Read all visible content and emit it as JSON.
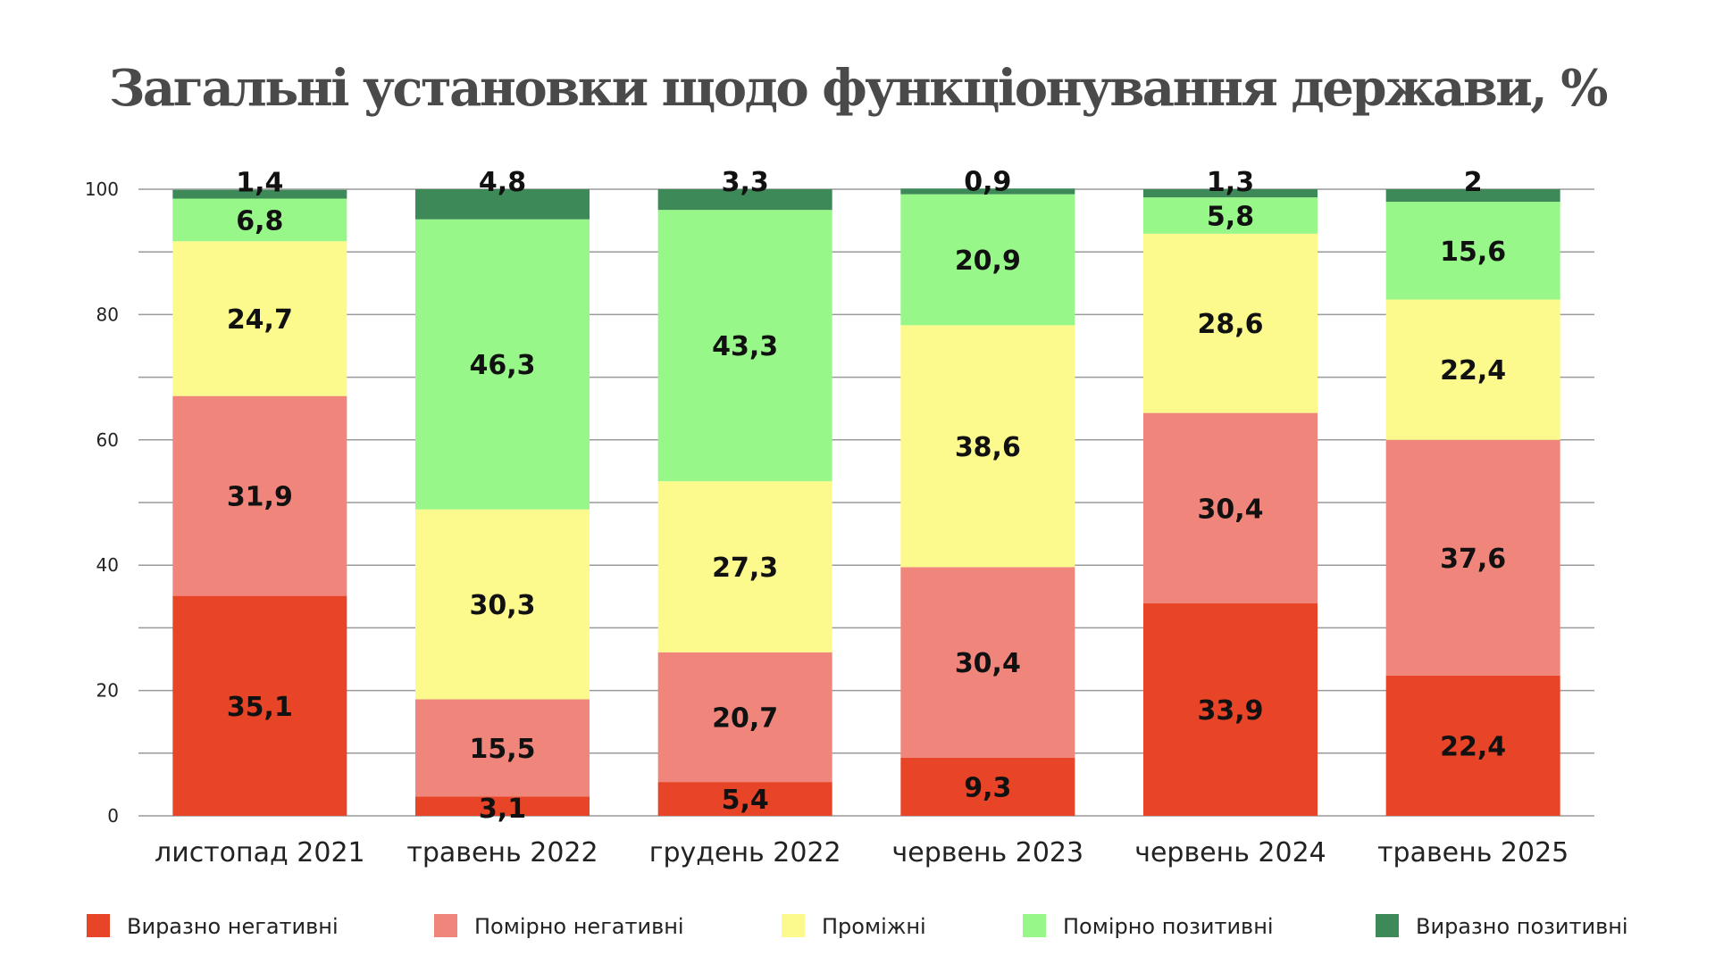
{
  "chart_data": {
    "type": "bar",
    "stacked": true,
    "title": "Загальні установки щодо функціонування держави, %",
    "categories": [
      "листопад 2021",
      "травень 2022",
      "грудень 2022",
      "червень 2023",
      "червень 2024",
      "травень 2025"
    ],
    "ylim": [
      0,
      100
    ],
    "yticks": [
      0,
      20,
      40,
      60,
      80,
      100
    ],
    "yticks_labels": [
      "0",
      "20",
      "40",
      "60",
      "80",
      "100"
    ],
    "grid": true,
    "legend_position": "bottom",
    "series": [
      {
        "name": "Виразно негативні",
        "color": "#e84427",
        "values": [
          35.1,
          3.1,
          5.4,
          9.3,
          33.9,
          22.4
        ],
        "labels": [
          "35,1",
          "3,1",
          "5,4",
          "9,3",
          "33,9",
          "22,4"
        ]
      },
      {
        "name": "Помірно негативні",
        "color": "#f0867b",
        "values": [
          31.9,
          15.5,
          20.7,
          30.4,
          30.4,
          37.6
        ],
        "labels": [
          "31,9",
          "15,5",
          "20,7",
          "30,4",
          "30,4",
          "37,6"
        ]
      },
      {
        "name": "Проміжні",
        "color": "#fcfa8c",
        "values": [
          24.7,
          30.3,
          27.3,
          38.6,
          28.6,
          22.4
        ],
        "labels": [
          "24,7",
          "30,3",
          "27,3",
          "38,6",
          "28,6",
          "22,4"
        ]
      },
      {
        "name": "Помірно позитивні",
        "color": "#98f789",
        "values": [
          6.8,
          46.3,
          43.3,
          20.9,
          5.8,
          15.6
        ],
        "labels": [
          "6,8",
          "46,3",
          "43,3",
          "20,9",
          "5,8",
          "15,6"
        ]
      },
      {
        "name": "Виразно позитивні",
        "color": "#3d8a58",
        "values": [
          1.4,
          4.8,
          3.3,
          0.9,
          1.3,
          2
        ],
        "labels": [
          "1,4",
          "4,8",
          "3,3",
          "0,9",
          "1,3",
          "2"
        ]
      }
    ]
  }
}
